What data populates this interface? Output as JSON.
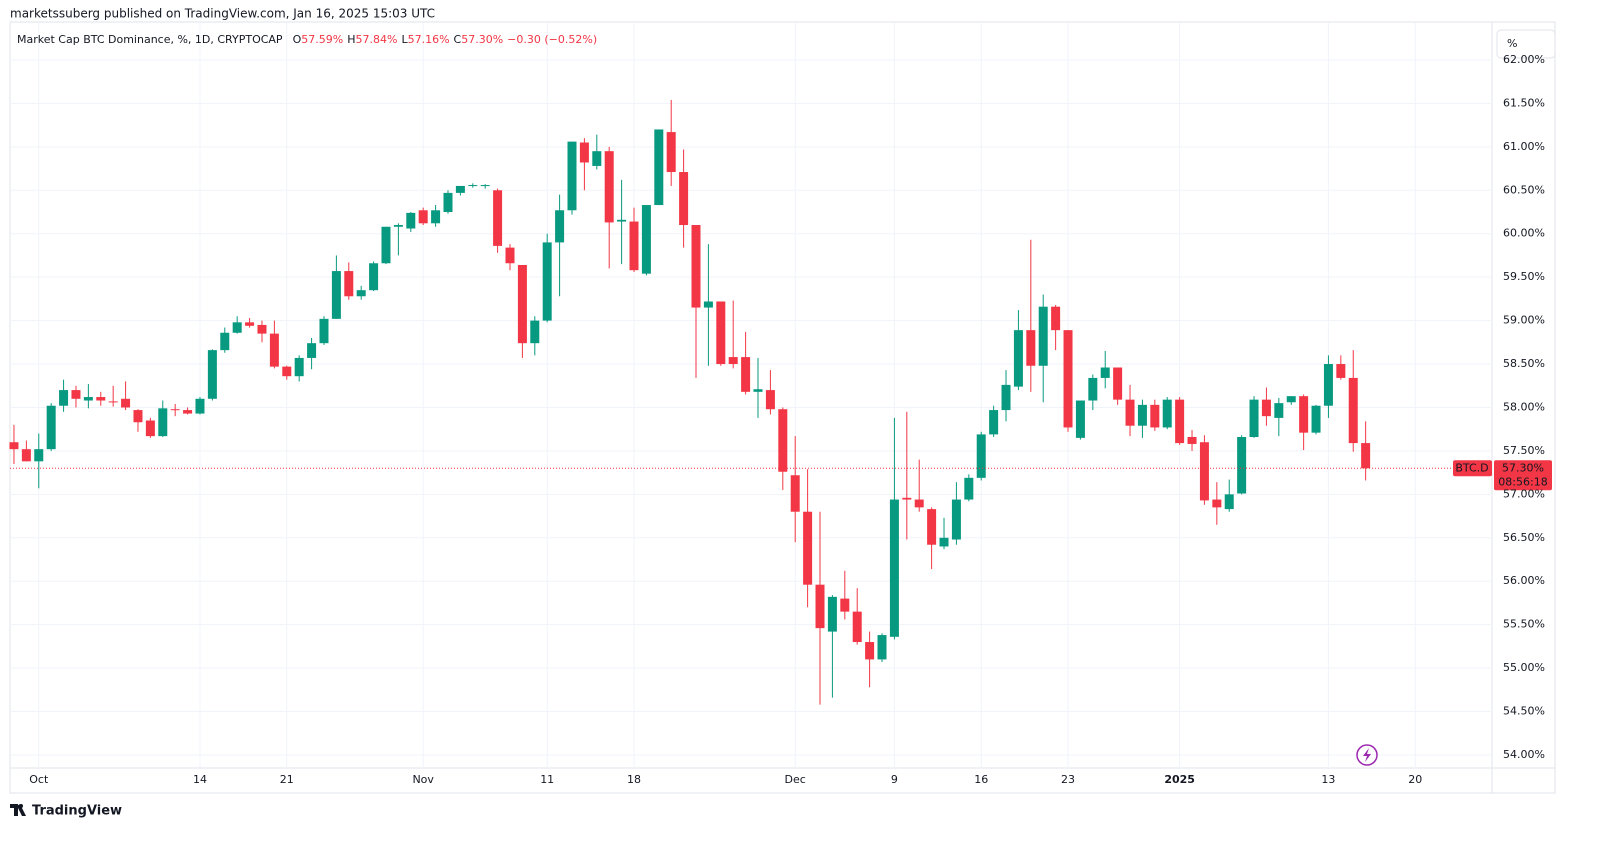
{
  "header": {
    "attribution": "marketssuberg published on TradingView.com, Jan 16, 2025 15:03 UTC"
  },
  "footer": {
    "brand": "TradingView"
  },
  "toolbar": {
    "scale_button": "%"
  },
  "chart_data": {
    "type": "candlestick",
    "title": "Market Cap BTC Dominance, %, 1D, CRYPTOCAP",
    "ohlc_legend": [
      {
        "label": "O",
        "value": "57.59%"
      },
      {
        "label": "H",
        "value": "57.84%"
      },
      {
        "label": "L",
        "value": "57.16%"
      },
      {
        "label": "C",
        "value": "57.30%"
      }
    ],
    "change": "−0.30 (−0.52%)",
    "price_tag": {
      "symbol": "BTC.D",
      "value": "57.30%",
      "countdown": "08:56:18"
    },
    "up_color": "#089981",
    "down_color": "#f23645",
    "grid": true,
    "open": [
      57.6,
      57.52,
      57.38,
      57.52,
      58.02,
      58.2,
      58.08,
      58.12,
      58.07,
      58.1,
      57.97,
      57.85,
      57.67,
      57.98,
      57.97,
      57.93,
      58.1,
      58.66,
      58.86,
      58.98,
      58.95,
      58.85,
      58.47,
      58.36,
      58.57,
      58.74,
      59.02,
      59.57,
      59.28,
      59.35,
      59.66,
      60.08,
      60.06,
      60.27,
      60.12,
      60.25,
      60.47,
      60.55,
      60.55,
      60.5,
      59.84,
      59.64,
      58.74,
      59.0,
      59.9,
      60.27,
      61.05,
      60.78,
      60.95,
      60.14,
      60.14,
      59.54,
      60.33,
      61.17,
      60.71,
      60.1,
      59.15,
      59.22,
      58.58,
      58.58,
      58.18,
      58.2,
      57.98,
      57.22,
      56.8,
      55.96,
      55.42,
      55.8,
      55.65,
      55.3,
      55.1,
      55.36,
      56.96,
      56.94,
      56.83,
      56.4,
      56.48,
      56.94,
      57.19,
      57.69,
      57.97,
      58.24,
      58.89,
      58.48,
      59.16,
      58.89,
      57.65,
      58.08,
      58.34,
      58.46,
      58.09,
      57.79,
      58.03,
      57.77,
      58.09,
      57.66,
      57.6,
      56.94,
      56.83,
      57.01,
      57.66,
      58.09,
      57.88,
      58.06,
      58.13,
      57.71,
      58.02,
      58.5,
      58.34,
      57.59
    ],
    "high": [
      57.8,
      57.62,
      57.7,
      58.05,
      58.32,
      58.25,
      58.27,
      58.18,
      58.25,
      58.3,
      57.98,
      57.88,
      58.08,
      58.04,
      58.0,
      58.12,
      58.67,
      58.92,
      59.05,
      59.03,
      59.0,
      59.0,
      58.48,
      58.6,
      58.8,
      59.05,
      59.75,
      59.67,
      59.4,
      59.68,
      60.08,
      60.12,
      60.25,
      60.3,
      60.33,
      60.5,
      60.55,
      60.58,
      60.57,
      60.52,
      59.88,
      59.64,
      59.05,
      60.0,
      60.45,
      61.06,
      61.1,
      61.14,
      61.0,
      60.62,
      60.3,
      60.33,
      61.2,
      61.54,
      60.97,
      60.1,
      59.88,
      59.22,
      59.23,
      58.87,
      58.57,
      58.43,
      58.0,
      57.67,
      57.29,
      56.8,
      55.84,
      56.12,
      55.92,
      55.42,
      55.4,
      57.88,
      57.95,
      57.4,
      56.85,
      56.73,
      57.14,
      57.23,
      57.72,
      58.02,
      58.43,
      59.12,
      59.93,
      59.3,
      59.18,
      58.89,
      58.08,
      58.38,
      58.65,
      58.46,
      58.26,
      58.09,
      58.09,
      58.12,
      58.12,
      57.74,
      57.68,
      57.14,
      57.17,
      57.68,
      58.13,
      58.23,
      58.11,
      58.13,
      58.15,
      58.03,
      58.6,
      58.6,
      58.66,
      57.84
    ],
    "low": [
      57.35,
      57.38,
      57.07,
      57.5,
      57.95,
      58.0,
      57.99,
      58.02,
      58.01,
      57.97,
      57.72,
      57.65,
      57.66,
      57.9,
      57.92,
      57.92,
      58.08,
      58.63,
      58.85,
      58.92,
      58.75,
      58.45,
      58.32,
      58.3,
      58.44,
      58.72,
      59.02,
      59.24,
      59.24,
      59.34,
      59.65,
      59.75,
      60.02,
      60.1,
      60.08,
      60.23,
      60.44,
      60.53,
      60.52,
      59.78,
      59.58,
      58.57,
      58.6,
      58.98,
      59.28,
      60.22,
      60.5,
      60.74,
      59.6,
      59.65,
      59.56,
      59.52,
      60.33,
      60.55,
      59.84,
      58.34,
      58.48,
      58.48,
      58.45,
      58.15,
      57.88,
      57.92,
      57.05,
      56.45,
      55.7,
      54.58,
      54.66,
      55.56,
      55.27,
      54.78,
      55.07,
      55.33,
      56.48,
      56.8,
      56.14,
      56.37,
      56.42,
      56.92,
      57.16,
      57.66,
      57.84,
      58.2,
      58.18,
      58.06,
      58.66,
      57.72,
      57.63,
      57.97,
      58.22,
      58.03,
      57.67,
      57.65,
      57.73,
      57.75,
      57.57,
      57.5,
      56.88,
      56.65,
      56.8,
      57.0,
      57.65,
      57.79,
      57.67,
      58.03,
      57.51,
      57.69,
      57.88,
      58.32,
      57.49,
      57.16
    ],
    "close": [
      57.52,
      57.38,
      57.52,
      58.02,
      58.2,
      58.1,
      58.12,
      58.08,
      58.06,
      58.0,
      57.83,
      57.67,
      57.99,
      57.97,
      57.93,
      58.1,
      58.66,
      58.86,
      58.98,
      58.94,
      58.85,
      58.47,
      58.36,
      58.57,
      58.74,
      59.02,
      59.57,
      59.28,
      59.35,
      59.66,
      60.08,
      60.1,
      60.24,
      60.12,
      60.27,
      60.47,
      60.55,
      60.56,
      60.56,
      59.86,
      59.66,
      58.74,
      59.0,
      59.9,
      60.27,
      61.06,
      60.82,
      60.95,
      60.13,
      60.16,
      59.58,
      60.33,
      61.2,
      60.71,
      60.1,
      59.15,
      59.22,
      58.5,
      58.5,
      58.18,
      58.21,
      57.98,
      57.26,
      56.8,
      55.96,
      55.46,
      55.82,
      55.65,
      55.3,
      55.1,
      55.38,
      56.94,
      56.94,
      56.85,
      56.42,
      56.5,
      56.94,
      57.19,
      57.69,
      57.97,
      58.26,
      58.89,
      58.48,
      59.16,
      58.89,
      57.77,
      58.08,
      58.34,
      58.46,
      58.09,
      57.79,
      58.03,
      57.77,
      58.09,
      57.59,
      57.58,
      56.93,
      56.85,
      57.0,
      57.66,
      58.09,
      57.9,
      58.05,
      58.13,
      57.71,
      58.02,
      58.5,
      58.34,
      57.59,
      57.3
    ],
    "xlim": [
      -0.32,
      119.19
    ],
    "xticks": [
      {
        "value": 2,
        "label": "Oct"
      },
      {
        "value": 15,
        "label": "14"
      },
      {
        "value": 22,
        "label": "21"
      },
      {
        "value": 33,
        "label": "Nov"
      },
      {
        "value": 43,
        "label": "11"
      },
      {
        "value": 50,
        "label": "18"
      },
      {
        "value": 63,
        "label": "Dec"
      },
      {
        "value": 71,
        "label": "9"
      },
      {
        "value": 78,
        "label": "16"
      },
      {
        "value": 85,
        "label": "23"
      },
      {
        "value": 94,
        "label": "2025"
      },
      {
        "value": 106,
        "label": "13"
      },
      {
        "value": 113,
        "label": "20"
      }
    ],
    "ylim": [
      53.85,
      62.437
    ],
    "yticks": [
      {
        "value": 54,
        "label": "54.00%"
      },
      {
        "value": 54.5,
        "label": "54.50%"
      },
      {
        "value": 55,
        "label": "55.00%"
      },
      {
        "value": 55.5,
        "label": "55.50%"
      },
      {
        "value": 56,
        "label": "56.00%"
      },
      {
        "value": 56.5,
        "label": "56.50%"
      },
      {
        "value": 57,
        "label": "57.00%"
      },
      {
        "value": 57.5,
        "label": "57.50%"
      },
      {
        "value": 58,
        "label": "58.00%"
      },
      {
        "value": 58.5,
        "label": "58.50%"
      },
      {
        "value": 59,
        "label": "59.00%"
      },
      {
        "value": 59.5,
        "label": "59.50%"
      },
      {
        "value": 60,
        "label": "60.00%"
      },
      {
        "value": 60.5,
        "label": "60.50%"
      },
      {
        "value": 61,
        "label": "61.00%"
      },
      {
        "value": 61.5,
        "label": "61.50%"
      },
      {
        "value": 62,
        "label": "62.00%"
      }
    ]
  }
}
